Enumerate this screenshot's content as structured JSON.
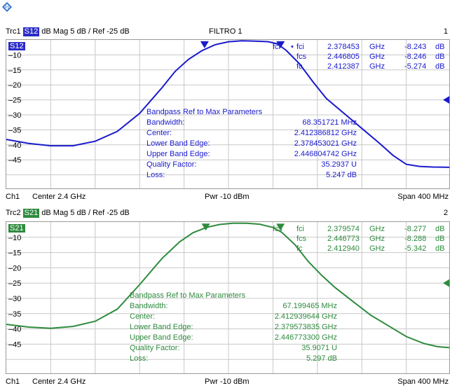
{
  "logo": "rohde-schwarz-logo",
  "window_title": "FILTRO 1",
  "panels": [
    {
      "trace_label": "Trc1",
      "param": "S12",
      "format": "dB Mag",
      "scale": "5 dB /",
      "ref": "Ref -25 dB",
      "channel_index": "1",
      "color": "#1a1acc",
      "badge_color": "#2b2bc8",
      "y_ticks": [
        "-10",
        "-15",
        "-20",
        "-25",
        "-30",
        "-35",
        "-40",
        "-45"
      ],
      "markers": [
        {
          "name": "fci",
          "bullet": "•",
          "freq": "2.378453",
          "unit": "GHz",
          "value": "-8.243",
          "vunit": "dB"
        },
        {
          "name": "fcs",
          "bullet": "",
          "freq": "2.446805",
          "unit": "GHz",
          "value": "-8.246",
          "vunit": "dB"
        },
        {
          "name": "fc",
          "bullet": "",
          "freq": "2.412387",
          "unit": "GHz",
          "value": "-5.274",
          "vunit": "dB"
        }
      ],
      "bandpass": {
        "title": "Bandpass Ref to Max Parameters",
        "rows": [
          {
            "label": "Bandwidth:",
            "value": "68.351721 MHz"
          },
          {
            "label": "Center:",
            "value": "2.412386812 GHz"
          },
          {
            "label": "Lower Band Edge:",
            "value": "2.378453021 GHz"
          },
          {
            "label": "Upper Band Edge:",
            "value": "2.446804742 GHz"
          },
          {
            "label": "Quality Factor:",
            "value": "35.2937 U"
          },
          {
            "label": "Loss:",
            "value": "5.247 dB"
          }
        ]
      },
      "footer": {
        "channel": "Ch1",
        "center": "Center 2.4 GHz",
        "power": "Pwr -10 dBm",
        "span": "Span 400 MHz"
      },
      "trace": [
        [
          0,
          -38.2
        ],
        [
          0.05,
          -39.5
        ],
        [
          0.1,
          -40.3
        ],
        [
          0.15,
          -40.3
        ],
        [
          0.2,
          -38.8
        ],
        [
          0.25,
          -35.5
        ],
        [
          0.3,
          -29.5
        ],
        [
          0.35,
          -21
        ],
        [
          0.38,
          -15.5
        ],
        [
          0.41,
          -11.5
        ],
        [
          0.44,
          -8.6
        ],
        [
          0.47,
          -6.6
        ],
        [
          0.5,
          -5.6
        ],
        [
          0.53,
          -5.3
        ],
        [
          0.56,
          -5.4
        ],
        [
          0.59,
          -5.6
        ],
        [
          0.61,
          -6.3
        ],
        [
          0.63,
          -8.5
        ],
        [
          0.66,
          -13
        ],
        [
          0.69,
          -19
        ],
        [
          0.72,
          -24.5
        ],
        [
          0.76,
          -29.5
        ],
        [
          0.8,
          -34.5
        ],
        [
          0.84,
          -39.5
        ],
        [
          0.87,
          -43.5
        ],
        [
          0.9,
          -46.5
        ],
        [
          0.93,
          -47.2
        ],
        [
          0.96,
          -47.4
        ],
        [
          1.0,
          -47.5
        ]
      ]
    },
    {
      "trace_label": "Trc2",
      "param": "S21",
      "format": "dB Mag",
      "scale": "5 dB /",
      "ref": "Ref -25 dB",
      "channel_index": "2",
      "color": "#2e8b3e",
      "badge_color": "#2e8b3e",
      "y_ticks": [
        "-10",
        "-15",
        "-20",
        "-25",
        "-30",
        "-35",
        "-40",
        "-45"
      ],
      "markers": [
        {
          "name": "fci",
          "bullet": "",
          "freq": "2.379574",
          "unit": "GHz",
          "value": "-8.277",
          "vunit": "dB"
        },
        {
          "name": "fcs",
          "bullet": "",
          "freq": "2.446773",
          "unit": "GHz",
          "value": "-8.288",
          "vunit": "dB"
        },
        {
          "name": "fc",
          "bullet": "",
          "freq": "2.412940",
          "unit": "GHz",
          "value": "-5.342",
          "vunit": "dB"
        }
      ],
      "bandpass": {
        "title": "Bandpass Ref to Max Parameters",
        "rows": [
          {
            "label": "Bandwidth:",
            "value": "67.199465 MHz"
          },
          {
            "label": "Center:",
            "value": "2.412939644 GHz"
          },
          {
            "label": "Lower Band Edge:",
            "value": "2.379573835 GHz"
          },
          {
            "label": "Upper Band Edge:",
            "value": "2.446773300 GHz"
          },
          {
            "label": "Quality Factor:",
            "value": "35.9071 U"
          },
          {
            "label": "Loss:",
            "value": "5.297 dB"
          }
        ]
      },
      "footer": {
        "channel": "Ch1",
        "center": "Center 2.4 GHz",
        "power": "Pwr -10 dBm",
        "span": "Span 400 MHz"
      },
      "trace": [
        [
          0,
          -38.5
        ],
        [
          0.05,
          -39.4
        ],
        [
          0.1,
          -39.8
        ],
        [
          0.15,
          -39.2
        ],
        [
          0.2,
          -37.5
        ],
        [
          0.25,
          -33.5
        ],
        [
          0.3,
          -25.5
        ],
        [
          0.35,
          -17
        ],
        [
          0.39,
          -11.5
        ],
        [
          0.42,
          -8.5
        ],
        [
          0.45,
          -6.8
        ],
        [
          0.48,
          -5.8
        ],
        [
          0.51,
          -5.4
        ],
        [
          0.54,
          -5.4
        ],
        [
          0.57,
          -5.7
        ],
        [
          0.6,
          -6.8
        ],
        [
          0.62,
          -8.4
        ],
        [
          0.65,
          -12.5
        ],
        [
          0.68,
          -18
        ],
        [
          0.71,
          -22.5
        ],
        [
          0.74,
          -26.5
        ],
        [
          0.78,
          -31
        ],
        [
          0.82,
          -35.5
        ],
        [
          0.86,
          -39
        ],
        [
          0.9,
          -42.5
        ],
        [
          0.94,
          -44.8
        ],
        [
          0.97,
          -45.8
        ],
        [
          1.0,
          -46.2
        ]
      ]
    }
  ]
}
